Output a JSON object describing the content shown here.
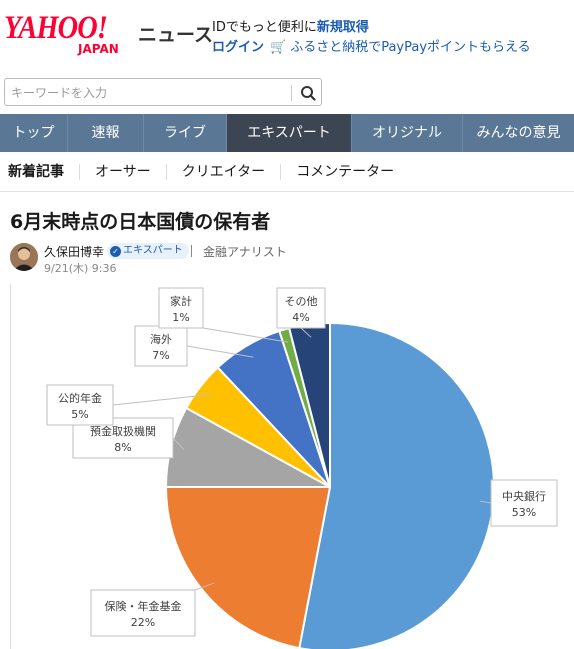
{
  "header": {
    "logo_main": "YAHOO!",
    "logo_sub": "JAPAN",
    "service_name": "ニュース",
    "promo_line1_prefix": "IDでもっと便利に",
    "promo_line1_link": "新規取得",
    "login_label": "ログイン",
    "promo_line2": "ふるさと納税でPayPayポイントもらえる"
  },
  "search": {
    "placeholder": "キーワードを入力"
  },
  "nav": {
    "tabs": [
      {
        "label": "トップ"
      },
      {
        "label": "速報"
      },
      {
        "label": "ライブ"
      },
      {
        "label": "エキスパート"
      },
      {
        "label": "オリジナル"
      },
      {
        "label": "みんなの意見"
      }
    ]
  },
  "subnav": {
    "items": [
      {
        "label": "新着記事"
      },
      {
        "label": "オーサー"
      },
      {
        "label": "クリエイター"
      },
      {
        "label": "コメンテーター"
      }
    ]
  },
  "article": {
    "title": "6月末時点の日本国債の保有者",
    "author_name": "久保田博幸",
    "badge": "エキスパート",
    "author_title": "金融アナリスト",
    "date": "9/21(木) 9:36"
  },
  "chart_data": {
    "type": "pie",
    "title": "",
    "slices": [
      {
        "label": "中央銀行",
        "value": 53,
        "display": "53%",
        "color": "#5b9bd5"
      },
      {
        "label": "保険・年金基金",
        "value": 22,
        "display": "22%",
        "color": "#ed7d31"
      },
      {
        "label": "預金取扱機関",
        "value": 8,
        "display": "8%",
        "color": "#a5a5a5"
      },
      {
        "label": "公的年金",
        "value": 5,
        "display": "5%",
        "color": "#ffc000"
      },
      {
        "label": "海外",
        "value": 7,
        "display": "7%",
        "color": "#4472c4"
      },
      {
        "label": "家計",
        "value": 1,
        "display": "1%",
        "color": "#70ad47"
      },
      {
        "label": "その他",
        "value": 4,
        "display": "4%",
        "color": "#264478"
      }
    ]
  }
}
